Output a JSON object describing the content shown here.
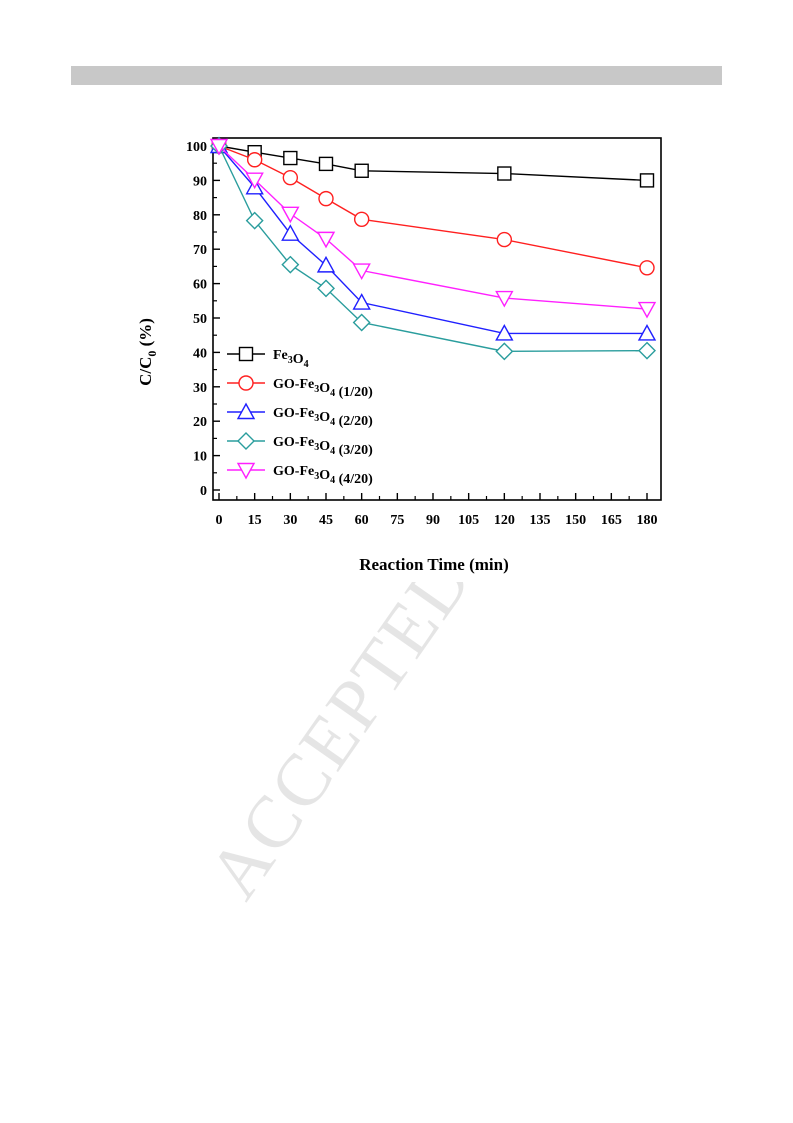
{
  "watermark": "ACCEPTED",
  "chart_data": {
    "type": "line",
    "xlabel": "Reaction Time (min)",
    "ylabel": "C/C0 (%)",
    "ylabel_main": "C/C",
    "ylabel_sub": "0",
    "ylabel_tail": " (%)",
    "xlim": [
      0,
      180
    ],
    "ylim": [
      0,
      100
    ],
    "xticks": [
      0,
      15,
      30,
      45,
      60,
      75,
      90,
      105,
      120,
      135,
      150,
      165,
      180
    ],
    "yticks": [
      0,
      10,
      20,
      30,
      40,
      50,
      60,
      70,
      80,
      90,
      100
    ],
    "grid": false,
    "legend_position": "lower-left",
    "x": [
      0,
      15,
      30,
      45,
      60,
      120,
      180
    ],
    "series": [
      {
        "name": "Fe3O4",
        "label_parts": [
          [
            "Fe",
            false
          ],
          [
            "3",
            true
          ],
          [
            "O",
            false
          ],
          [
            "4",
            true
          ]
        ],
        "color": "#000000",
        "marker": "square",
        "values": [
          100,
          98.2,
          96.5,
          94.8,
          92.8,
          92,
          90
        ]
      },
      {
        "name": "GO-Fe3O4 (1/20)",
        "label_parts": [
          [
            "GO-Fe",
            false
          ],
          [
            "3",
            true
          ],
          [
            "O",
            false
          ],
          [
            "4",
            true
          ],
          [
            " (1/20)",
            false
          ]
        ],
        "color": "#ff2020",
        "marker": "circle",
        "values": [
          100,
          96,
          90.8,
          84.7,
          78.7,
          72.8,
          64.6
        ]
      },
      {
        "name": "GO-Fe3O4 (2/20)",
        "label_parts": [
          [
            "GO-Fe",
            false
          ],
          [
            "3",
            true
          ],
          [
            "O",
            false
          ],
          [
            "4",
            true
          ],
          [
            " (2/20)",
            false
          ]
        ],
        "color": "#2020ff",
        "marker": "triangle-up",
        "values": [
          100,
          88,
          74.5,
          65.3,
          54.5,
          45.5,
          45.5
        ]
      },
      {
        "name": "GO-Fe3O4 (3/20)",
        "label_parts": [
          [
            "GO-Fe",
            false
          ],
          [
            "3",
            true
          ],
          [
            "O",
            false
          ],
          [
            "4",
            true
          ],
          [
            "  (3/20)",
            false
          ]
        ],
        "color": "#2a9d9d",
        "marker": "diamond",
        "values": [
          100,
          78.3,
          65.5,
          58.6,
          48.7,
          40.3,
          40.5
        ]
      },
      {
        "name": "GO-Fe3O4 (4/20)",
        "label_parts": [
          [
            "GO-Fe",
            false
          ],
          [
            "3",
            true
          ],
          [
            "O",
            false
          ],
          [
            "4",
            true
          ],
          [
            "  (4/20)",
            false
          ]
        ],
        "color": "#ff20ff",
        "marker": "triangle-down",
        "values": [
          100,
          90.2,
          80.3,
          73,
          63.8,
          55.8,
          52.6
        ]
      }
    ]
  }
}
